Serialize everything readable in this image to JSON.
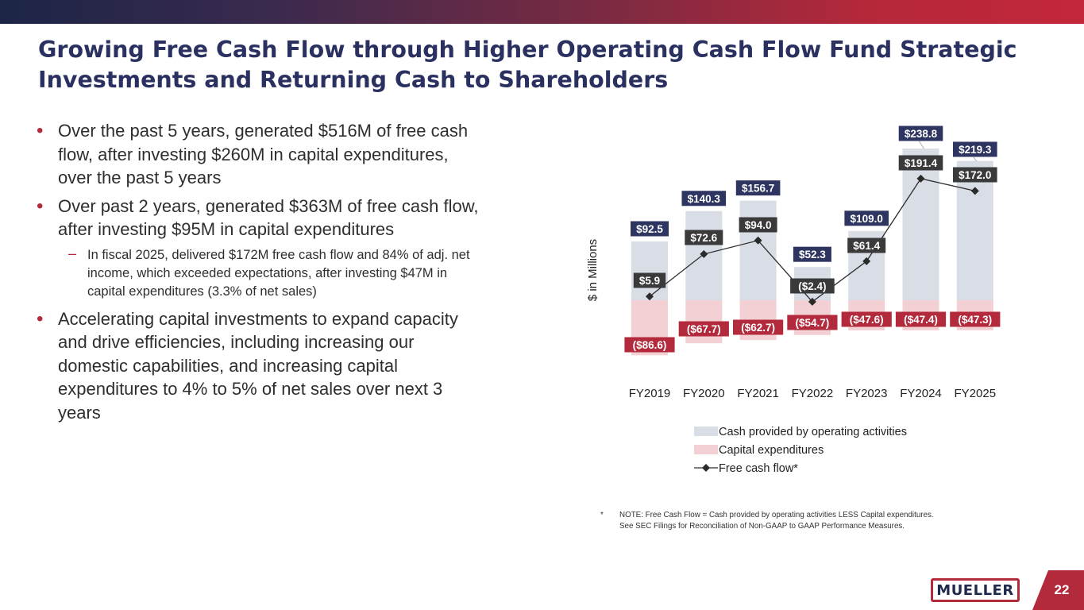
{
  "title": {
    "line1": "Growing Free Cash Flow through Higher Operating Cash Flow Fund Strategic",
    "line2": "Investments and Returning Cash to Shareholders"
  },
  "bullets": [
    {
      "text": "Over the past 5 years, generated $516M of free cash flow, after investing $260M in capital expenditures, over the past 5 years"
    },
    {
      "text": "Over past 2 years, generated $363M of free cash flow, after investing $95M in capital expenditures",
      "sub": "In fiscal 2025, delivered $172M free cash flow and 84% of adj. net income, which exceeded expectations, after investing $47M in capital expenditures (3.3% of net sales)"
    },
    {
      "text": "Accelerating capital investments to expand capacity and drive efficiencies, including increasing our domestic capabilities, and increasing capital expenditures to 4% to 5% of net sales over next 3 years"
    }
  ],
  "chart_data": {
    "type": "bar",
    "categories": [
      "FY2019",
      "FY2020",
      "FY2021",
      "FY2022",
      "FY2023",
      "FY2024",
      "FY2025"
    ],
    "ylabel": "$ in Millions",
    "legend_position": "bottom",
    "series": [
      {
        "name": "Cash provided by operating activities",
        "type": "bar",
        "color": "#d8dde6",
        "values": [
          92.5,
          140.3,
          156.7,
          52.3,
          109.0,
          238.8,
          219.3
        ],
        "labels": [
          "$92.5",
          "$140.3",
          "$156.7",
          "$52.3",
          "$109.0",
          "$238.8",
          "$219.3"
        ]
      },
      {
        "name": "Capital expenditures",
        "type": "bar",
        "color": "#f3d0d3",
        "values": [
          -86.6,
          -67.7,
          -62.7,
          -54.7,
          -47.6,
          -47.4,
          -47.3
        ],
        "labels": [
          "($86.6)",
          "($67.7)",
          "($62.7)",
          "($54.7)",
          "($47.6)",
          "($47.4)",
          "($47.3)"
        ]
      },
      {
        "name": "Free cash flow*",
        "type": "line",
        "color": "#2b2b2b",
        "values": [
          5.9,
          72.6,
          94.0,
          -2.4,
          61.4,
          191.4,
          172.0
        ],
        "labels": [
          "$5.9",
          "$72.6",
          "$94.0",
          "($2.4)",
          "$61.4",
          "$191.4",
          "$172.0"
        ]
      }
    ],
    "label_colors": {
      "operating": "#2e3560",
      "capex": "#b22a3b",
      "fcf": "#3a3a3a"
    }
  },
  "footnote": {
    "marker": "*",
    "line1": "NOTE:  Free Cash Flow = Cash provided by operating activities LESS Capital expenditures.",
    "line2": "See SEC Filings for Reconciliation of Non-GAAP to GAAP Performance Measures."
  },
  "logo": "MUELLER",
  "page_number": "22",
  "colors": {
    "brand_navy": "#2a3160",
    "brand_red": "#b22a3b"
  }
}
